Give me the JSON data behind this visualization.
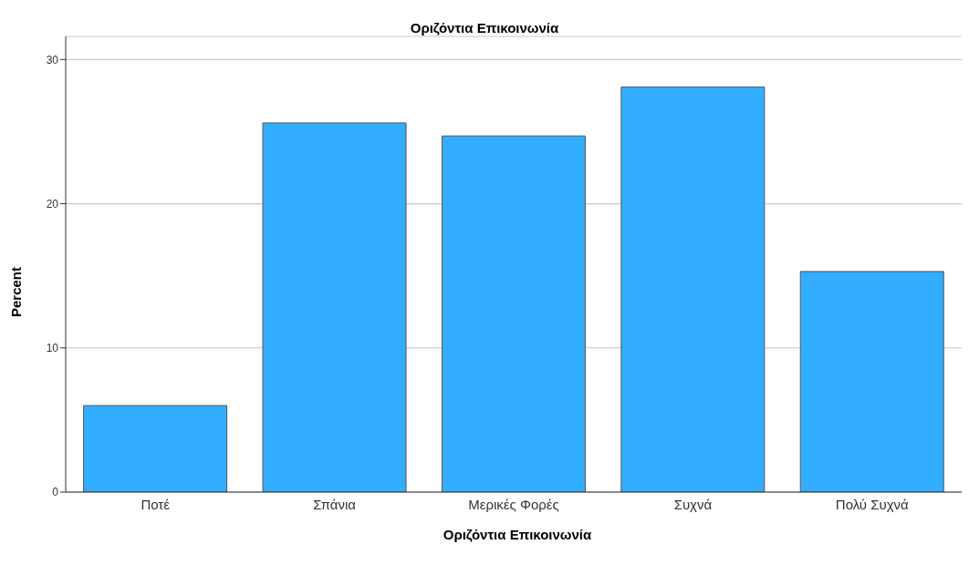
{
  "chart_data": {
    "type": "bar",
    "title": "Οριζόντια Επικοινωνία",
    "xlabel": "Οριζόντια Επικοινωνία",
    "ylabel": "Percent",
    "categories": [
      "Ποτέ",
      "Σπάνια",
      "Μερικές Φορές",
      "Συχνά",
      "Πολύ Συχνά"
    ],
    "values": [
      6.0,
      25.6,
      24.7,
      28.1,
      15.3
    ],
    "color": "#33adff",
    "ylim": [
      0,
      31.6
    ],
    "yticks": [
      0,
      10,
      20,
      30
    ],
    "grid": "y"
  }
}
